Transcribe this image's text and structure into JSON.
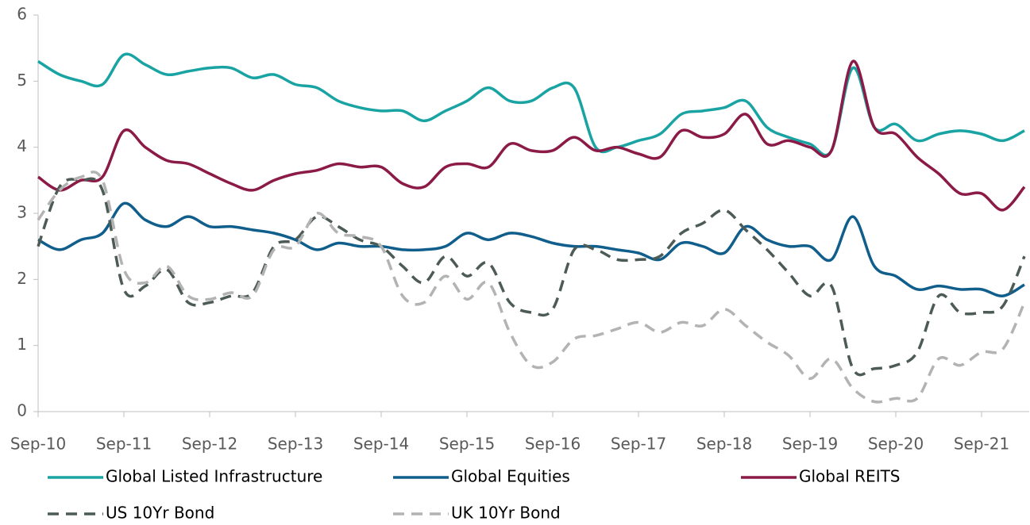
{
  "chart_data": {
    "type": "line",
    "categories": [
      "Sep-10",
      null,
      null,
      null,
      "Sep-11",
      null,
      null,
      null,
      "Sep-12",
      null,
      null,
      null,
      "Sep-13",
      null,
      null,
      null,
      "Sep-14",
      null,
      null,
      null,
      "Sep-15",
      null,
      null,
      null,
      "Sep-16",
      null,
      null,
      null,
      "Sep-17",
      null,
      null,
      null,
      "Sep-18",
      null,
      null,
      null,
      "Sep-19",
      null,
      null,
      null,
      "Sep-20",
      null,
      null,
      null,
      "Sep-21",
      null,
      null
    ],
    "ylim": [
      0,
      6
    ],
    "yticks": [
      0,
      1,
      2,
      3,
      4,
      5,
      6
    ],
    "series": [
      {
        "name": "Global Listed Infrastructure",
        "color": "#1aa3a3",
        "dash": false,
        "values": [
          5.3,
          5.1,
          5.0,
          4.95,
          5.4,
          5.25,
          5.1,
          5.15,
          5.2,
          5.2,
          5.05,
          5.1,
          4.95,
          4.9,
          4.7,
          4.6,
          4.55,
          4.55,
          4.4,
          4.55,
          4.7,
          4.9,
          4.7,
          4.7,
          4.9,
          4.9,
          4.0,
          4.0,
          4.1,
          4.2,
          4.5,
          4.55,
          4.6,
          4.7,
          4.3,
          4.15,
          4.05,
          3.95,
          5.2,
          4.3,
          4.35,
          4.1,
          4.2,
          4.25,
          4.2,
          4.1,
          4.25
        ]
      },
      {
        "name": "Global Equities",
        "color": "#0f5e8c",
        "dash": false,
        "values": [
          2.6,
          2.45,
          2.6,
          2.7,
          3.15,
          2.9,
          2.8,
          2.95,
          2.8,
          2.8,
          2.75,
          2.7,
          2.6,
          2.45,
          2.55,
          2.5,
          2.5,
          2.45,
          2.45,
          2.5,
          2.7,
          2.6,
          2.7,
          2.65,
          2.55,
          2.5,
          2.5,
          2.45,
          2.4,
          2.3,
          2.55,
          2.5,
          2.4,
          2.8,
          2.6,
          2.5,
          2.5,
          2.3,
          2.95,
          2.2,
          2.05,
          1.85,
          1.9,
          1.85,
          1.85,
          1.75,
          1.92
        ]
      },
      {
        "name": "Global REITS",
        "color": "#8b1a47",
        "dash": false,
        "values": [
          3.55,
          3.35,
          3.5,
          3.55,
          4.25,
          4.0,
          3.8,
          3.75,
          3.6,
          3.45,
          3.35,
          3.5,
          3.6,
          3.65,
          3.75,
          3.7,
          3.7,
          3.45,
          3.4,
          3.7,
          3.75,
          3.7,
          4.05,
          3.95,
          3.95,
          4.15,
          3.95,
          4.0,
          3.9,
          3.85,
          4.25,
          4.15,
          4.2,
          4.5,
          4.05,
          4.1,
          4.0,
          3.95,
          5.3,
          4.3,
          4.2,
          3.85,
          3.6,
          3.3,
          3.3,
          3.05,
          3.4
        ]
      },
      {
        "name": "US 10Yr Bond",
        "color": "#4d5b56",
        "dash": true,
        "values": [
          2.5,
          3.4,
          3.5,
          3.35,
          1.85,
          1.9,
          2.15,
          1.65,
          1.65,
          1.75,
          1.8,
          2.5,
          2.6,
          2.95,
          2.8,
          2.6,
          2.5,
          2.2,
          1.95,
          2.35,
          2.05,
          2.25,
          1.65,
          1.5,
          1.55,
          2.45,
          2.45,
          2.3,
          2.3,
          2.35,
          2.7,
          2.85,
          3.05,
          2.75,
          2.45,
          2.1,
          1.75,
          1.9,
          0.65,
          0.65,
          0.7,
          0.9,
          1.75,
          1.5,
          1.5,
          1.6,
          2.35
        ]
      },
      {
        "name": "UK 10Yr Bond",
        "color": "#b3b3b3",
        "dash": true,
        "values": [
          2.9,
          3.35,
          3.55,
          3.5,
          2.15,
          1.95,
          2.2,
          1.75,
          1.7,
          1.8,
          1.75,
          2.45,
          2.5,
          3.0,
          2.7,
          2.65,
          2.5,
          1.75,
          1.65,
          2.05,
          1.7,
          1.95,
          1.2,
          0.7,
          0.75,
          1.1,
          1.15,
          1.25,
          1.35,
          1.2,
          1.35,
          1.3,
          1.55,
          1.3,
          1.05,
          0.85,
          0.5,
          0.8,
          0.35,
          0.15,
          0.2,
          0.2,
          0.8,
          0.7,
          0.9,
          0.95,
          1.65
        ]
      }
    ]
  }
}
